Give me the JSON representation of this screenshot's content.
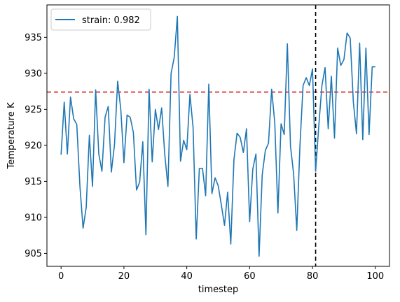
{
  "chart_data": {
    "type": "line",
    "title": "",
    "xlabel": "timestep",
    "ylabel": "Temperature K",
    "xlim": [
      -4.5,
      104.5
    ],
    "ylim": [
      903.2,
      939.5
    ],
    "xticks": [
      0,
      20,
      40,
      60,
      80,
      100
    ],
    "yticks": [
      905,
      910,
      915,
      920,
      925,
      930,
      935
    ],
    "grid": false,
    "legend_position": "upper-left",
    "series": [
      {
        "name": "strain: 0.982",
        "color": "#1f77b4",
        "x": [
          0,
          1,
          2,
          3,
          4,
          5,
          6,
          7,
          8,
          9,
          10,
          11,
          12,
          13,
          14,
          15,
          16,
          17,
          18,
          19,
          20,
          21,
          22,
          23,
          24,
          25,
          26,
          27,
          28,
          29,
          30,
          31,
          32,
          33,
          34,
          35,
          36,
          37,
          38,
          39,
          40,
          41,
          42,
          43,
          44,
          45,
          46,
          47,
          48,
          49,
          50,
          51,
          52,
          53,
          54,
          55,
          56,
          57,
          58,
          59,
          60,
          61,
          62,
          63,
          64,
          65,
          66,
          67,
          68,
          69,
          70,
          71,
          72,
          73,
          74,
          75,
          76,
          77,
          78,
          79,
          80,
          81,
          82,
          83,
          84,
          85,
          86,
          87,
          88,
          89,
          90,
          91,
          92,
          93,
          94,
          95,
          96,
          97,
          98,
          99,
          100
        ],
        "values": [
          918.7,
          926.0,
          918.8,
          926.7,
          923.7,
          922.9,
          914.3,
          908.5,
          911.4,
          921.4,
          914.3,
          927.7,
          918.8,
          916.4,
          923.9,
          925.4,
          916.3,
          920.1,
          928.9,
          925.0,
          917.6,
          924.2,
          923.9,
          921.8,
          913.8,
          914.9,
          920.5,
          907.6,
          927.8,
          917.7,
          925.0,
          922.2,
          925.2,
          918.7,
          914.3,
          930.0,
          932.2,
          937.9,
          917.8,
          920.7,
          919.4,
          927.1,
          922.5,
          907.0,
          916.8,
          916.8,
          913.0,
          928.5,
          913.3,
          915.5,
          914.4,
          911.7,
          908.9,
          913.5,
          906.3,
          918.0,
          921.7,
          921.1,
          919.0,
          922.3,
          909.4,
          916.7,
          918.8,
          904.6,
          915.9,
          919.3,
          920.3,
          927.8,
          923.1,
          910.6,
          923.0,
          921.5,
          934.1,
          919.9,
          916.0,
          908.2,
          919.9,
          928.3,
          929.4,
          928.3,
          930.6,
          916.4,
          922.7,
          928.3,
          930.8,
          922.3,
          929.6,
          921.0,
          933.5,
          931.1,
          931.9,
          935.6,
          934.9,
          926.0,
          921.6,
          934.2,
          920.8,
          933.5,
          921.5,
          930.9,
          930.9
        ]
      }
    ],
    "reference_lines": [
      {
        "orientation": "horizontal",
        "value": 927.4,
        "color": "#d62728",
        "style": "dashed"
      },
      {
        "orientation": "vertical",
        "value": 81,
        "color": "#000000",
        "style": "dashed"
      }
    ]
  }
}
